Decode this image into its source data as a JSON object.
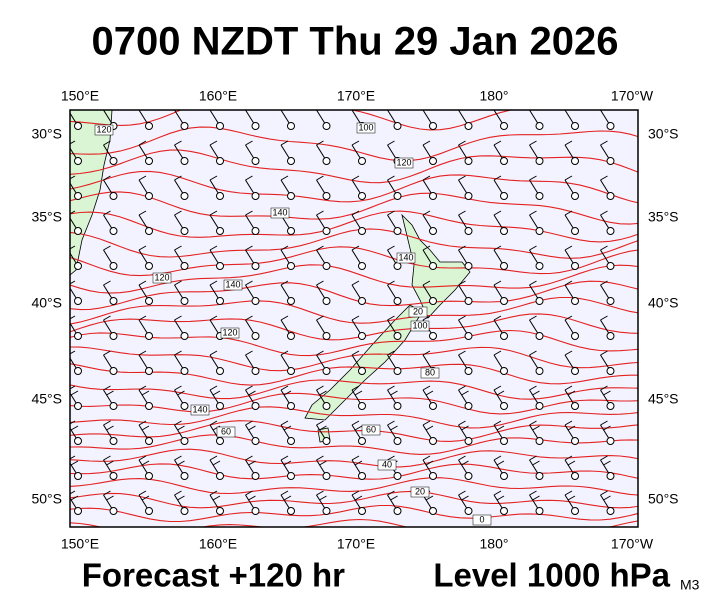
{
  "header": {
    "title": "0700 NZDT Thu 29 Jan 2026"
  },
  "map": {
    "top_labels": [
      "150°E",
      "160°E",
      "170°E",
      "180°",
      "170°W"
    ],
    "bottom_labels": [
      "150°E",
      "160°E",
      "170°E",
      "180°",
      "170°W"
    ],
    "left_labels": [
      "30°S",
      "35°S",
      "40°S",
      "45°S",
      "50°S"
    ],
    "right_labels": [
      "30°S",
      "35°S",
      "40°S",
      "45°S",
      "50°S"
    ],
    "contour_labels": [
      "120",
      "100",
      "120",
      "140",
      "140",
      "120",
      "140",
      "120",
      "140",
      "20",
      "100",
      "80",
      "60",
      "60",
      "40",
      "20",
      "0"
    ]
  },
  "footer": {
    "forecast": "Forecast +120 hr",
    "level": "Level 1000 hPa",
    "model": "M3"
  }
}
